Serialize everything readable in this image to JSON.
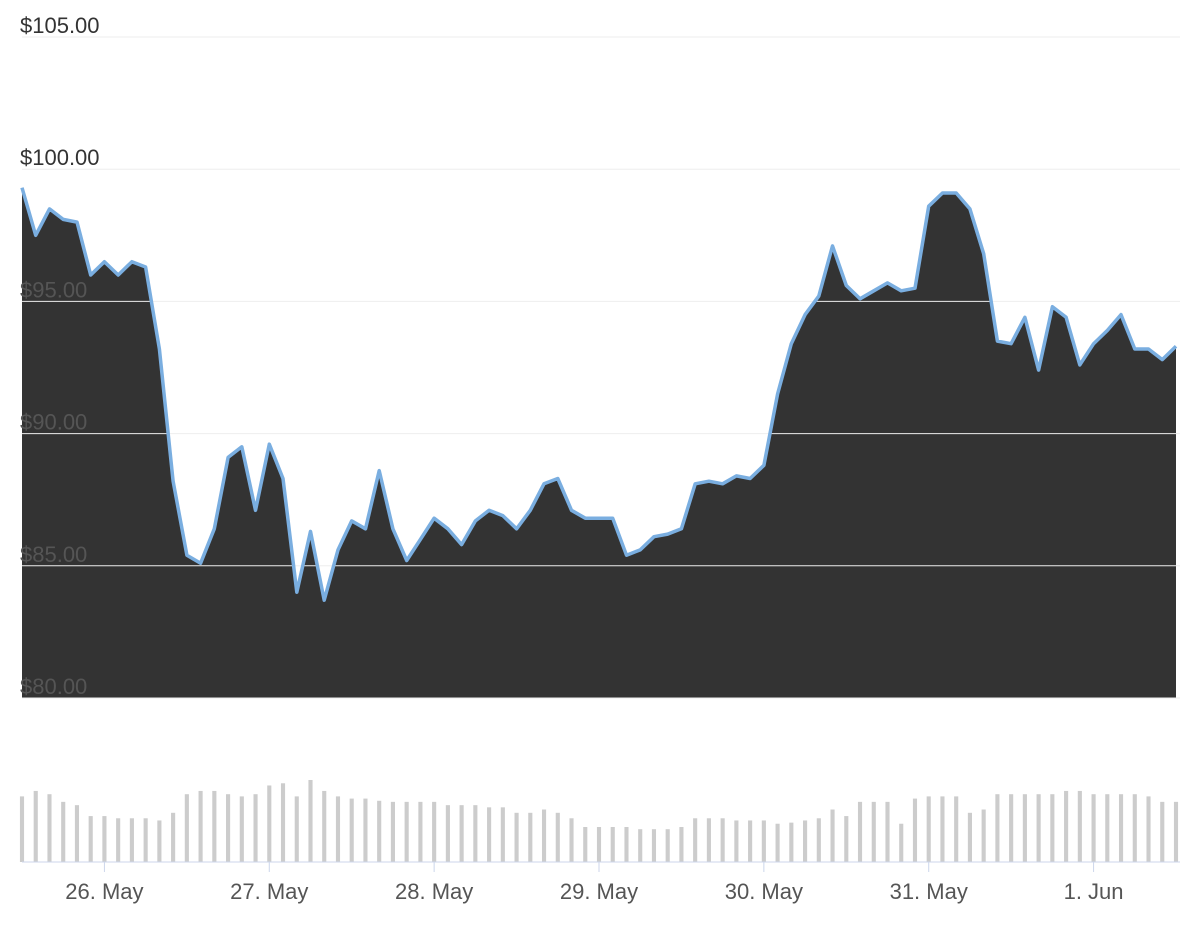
{
  "chart_data": {
    "type": "area",
    "categories": [
      null,
      null,
      null,
      null,
      null,
      null,
      "26. May",
      null,
      null,
      null,
      null,
      null,
      null,
      null,
      null,
      null,
      null,
      null,
      "27. May",
      null,
      null,
      null,
      null,
      null,
      null,
      null,
      null,
      null,
      null,
      null,
      "28. May",
      null,
      null,
      null,
      null,
      null,
      null,
      null,
      null,
      null,
      null,
      null,
      "29. May",
      null,
      null,
      null,
      null,
      null,
      null,
      null,
      null,
      null,
      null,
      null,
      "30. May",
      null,
      null,
      null,
      null,
      null,
      null,
      null,
      null,
      null,
      null,
      null,
      "31. May",
      null,
      null,
      null,
      null,
      null,
      null,
      null,
      null,
      null,
      null,
      null,
      "1. Jun",
      null,
      null,
      null,
      null,
      null,
      null
    ],
    "values": [
      99.3,
      97.5,
      98.5,
      98.1,
      98.0,
      96.0,
      96.5,
      96.0,
      96.5,
      96.3,
      93.2,
      88.2,
      85.4,
      85.1,
      86.4,
      89.1,
      89.5,
      87.1,
      89.6,
      88.3,
      84.0,
      86.3,
      83.7,
      85.6,
      86.7,
      86.4,
      88.6,
      86.4,
      85.2,
      86.0,
      86.8,
      86.4,
      85.8,
      86.7,
      87.1,
      86.9,
      86.4,
      87.1,
      88.1,
      88.3,
      87.1,
      86.8,
      86.8,
      86.8,
      85.4,
      85.6,
      86.1,
      86.2,
      86.4,
      88.1,
      88.2,
      88.1,
      88.4,
      88.3,
      88.8,
      91.5,
      93.4,
      94.5,
      95.2,
      97.1,
      95.6,
      95.1,
      95.4,
      95.7,
      95.4,
      95.5,
      98.6,
      99.1,
      99.1,
      98.5,
      96.8,
      93.5,
      93.4,
      94.4,
      92.4,
      94.8,
      94.4,
      92.6,
      93.4,
      93.9,
      94.5,
      93.2,
      93.2,
      92.8,
      93.3
    ],
    "color": "#7aaee0",
    "fill": "#333333",
    "ylim": [
      80,
      105
    ],
    "yticks": [
      {
        "value": 80,
        "label": "$80.00"
      },
      {
        "value": 85,
        "label": "$85.00"
      },
      {
        "value": 90,
        "label": "$90.00"
      },
      {
        "value": 95,
        "label": "$95.00"
      },
      {
        "value": 100,
        "label": "$100.00"
      },
      {
        "value": 105,
        "label": "$105.00"
      }
    ],
    "grid": true,
    "volume": {
      "color": "#cccccc",
      "values": [
        60,
        65,
        62,
        55,
        52,
        42,
        42,
        40,
        40,
        40,
        38,
        45,
        62,
        65,
        65,
        62,
        60,
        62,
        70,
        72,
        60,
        75,
        65,
        60,
        58,
        58,
        56,
        55,
        55,
        55,
        55,
        52,
        52,
        52,
        50,
        50,
        45,
        45,
        48,
        45,
        40,
        32,
        32,
        32,
        32,
        30,
        30,
        30,
        32,
        40,
        40,
        40,
        38,
        38,
        38,
        35,
        36,
        38,
        40,
        48,
        42,
        55,
        55,
        55,
        35,
        58,
        60,
        60,
        60,
        45,
        48,
        62,
        62,
        62,
        62,
        62,
        65,
        65,
        62,
        62,
        62,
        62,
        60,
        55,
        55
      ]
    }
  }
}
